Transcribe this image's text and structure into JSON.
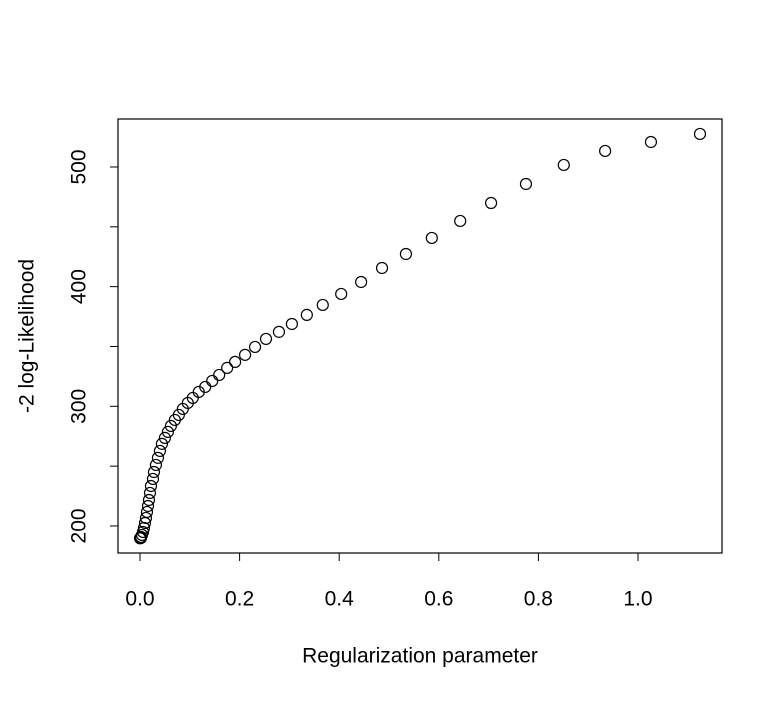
{
  "chart_data": {
    "type": "scatter",
    "xlabel": "Regularization parameter",
    "ylabel": "-2 log-Likelihood",
    "color": "#000000",
    "xlim": [
      -0.0442,
      1.1687
    ],
    "ylim": [
      177.4,
      540.1
    ],
    "xticks": [
      {
        "value": 0,
        "label": "0.0"
      },
      0.2,
      0.4,
      0.6,
      0.8,
      {
        "value": 1,
        "label": "1.0"
      }
    ],
    "yticks": [
      200,
      {
        "value": 250,
        "label": null
      },
      300,
      {
        "value": 350,
        "label": null
      },
      400,
      {
        "value": 450,
        "label": null
      },
      500
    ],
    "x": [
      1.1245,
      1.026,
      0.934,
      0.851,
      0.775,
      0.705,
      0.643,
      0.586,
      0.534,
      0.486,
      0.444,
      0.404,
      0.367,
      0.335,
      0.305,
      0.279,
      0.253,
      0.231,
      0.211,
      0.191,
      0.175,
      0.159,
      0.145,
      0.131,
      0.118,
      0.106,
      0.096,
      0.086,
      0.078,
      0.07,
      0.062,
      0.056,
      0.05,
      0.044,
      0.04,
      0.036,
      0.032,
      0.028,
      0.026,
      0.022,
      0.02,
      0.018,
      0.016,
      0.014,
      0.012,
      0.01,
      0.008,
      0.006,
      0.004,
      0.002,
      0.002,
      0.0
    ],
    "values": [
      527.6,
      520.9,
      513.4,
      501.7,
      485.8,
      469.9,
      454.9,
      440.7,
      427.3,
      415.6,
      403.9,
      393.9,
      384.7,
      376.4,
      368.8,
      362.2,
      356.3,
      349.6,
      343.0,
      337.1,
      332.1,
      326.2,
      321.2,
      316.2,
      312.0,
      307.0,
      302.8,
      297.8,
      292.8,
      288.6,
      283.6,
      278.6,
      273.6,
      268.6,
      262.7,
      256.9,
      251.0,
      245.1,
      239.3,
      233.4,
      227.6,
      221.7,
      216.7,
      211.7,
      206.7,
      202.5,
      198.3,
      195.0,
      192.5,
      190.8,
      190.0,
      189.7
    ]
  }
}
